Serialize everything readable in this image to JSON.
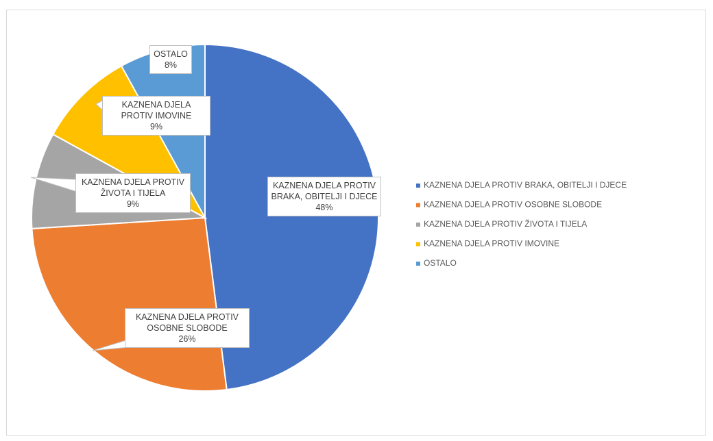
{
  "chart_data": {
    "type": "pie",
    "categories": [
      "KAZNENA DJELA PROTIV BRAKA, OBITELJI I DJECE",
      "KAZNENA DJELA PROTIV OSOBNE SLOBODE",
      "KAZNENA DJELA PROTIV ŽIVOTA I TIJELA",
      "KAZNENA DJELA PROTIV IMOVINE",
      "OSTALO"
    ],
    "values": [
      48,
      26,
      9,
      9,
      8
    ],
    "value_labels": [
      "48%",
      "26%",
      "9%",
      "9%",
      "8%"
    ],
    "colors": [
      "#4472c4",
      "#ed7d31",
      "#a5a5a5",
      "#ffc000",
      "#5b9bd5"
    ],
    "legend": "right"
  }
}
